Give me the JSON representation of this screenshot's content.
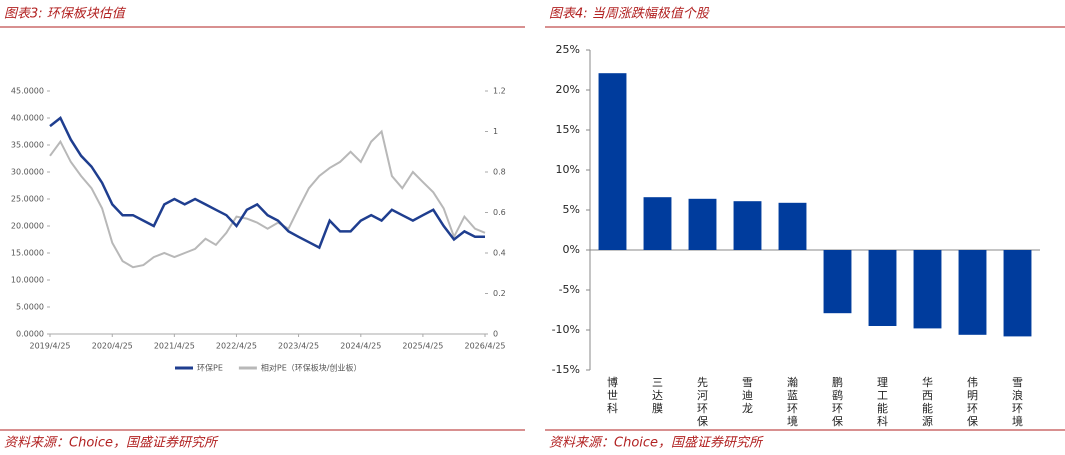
{
  "chart_data": [
    {
      "type": "line",
      "title": "图表3:  环保板块估值",
      "source": "资料来源：Choice，国盛证券研究所",
      "x": [
        "2019/4/25",
        "2019/6/25",
        "2019/8/25",
        "2019/10/25",
        "2019/12/25",
        "2020/2/25",
        "2020/4/25",
        "2020/6/25",
        "2020/8/25",
        "2020/10/25",
        "2020/12/25",
        "2021/2/25",
        "2021/4/25",
        "2021/6/25",
        "2021/8/25",
        "2021/10/25",
        "2021/12/25",
        "2022/2/25",
        "2022/4/25",
        "2022/6/25",
        "2022/8/25",
        "2022/10/25",
        "2022/12/25",
        "2023/2/25",
        "2023/4/25",
        "2023/6/25",
        "2023/8/25",
        "2023/10/25",
        "2023/12/25",
        "2024/2/25",
        "2024/4/25",
        "2024/6/25",
        "2024/8/25",
        "2024/10/25",
        "2024/12/25",
        "2025/2/25",
        "2025/4/25",
        "2025/6/25",
        "2025/8/25",
        "2025/10/25",
        "2025/12/25",
        "2026/2/25",
        "2026/4/25"
      ],
      "xlim": [
        "2019/4/25",
        "2026/4/25"
      ],
      "xticks": [
        "2019/4/25",
        "2020/4/25",
        "2021/4/25",
        "2022/4/25",
        "2023/4/25",
        "2024/4/25",
        "2025/4/25",
        "2026/4/25"
      ],
      "series": [
        {
          "name": "环保PE",
          "color": "#1f3e8f",
          "values": [
            38.5,
            40,
            36,
            33,
            31,
            28,
            24,
            22,
            22,
            21,
            20,
            24,
            25,
            24,
            25,
            24,
            23,
            22,
            20,
            23,
            24,
            22,
            21,
            19,
            18,
            17,
            16,
            21,
            19,
            19,
            21,
            22,
            21,
            23,
            22,
            21,
            22,
            23,
            20,
            17.5,
            19,
            18,
            18
          ]
        },
        {
          "name": "相对PE（环保板块/创业板）",
          "color": "#b8b8b8",
          "axis": "y2",
          "values": [
            0.88,
            0.95,
            0.85,
            0.78,
            0.72,
            0.62,
            0.45,
            0.36,
            0.33,
            0.34,
            0.38,
            0.4,
            0.38,
            0.4,
            0.42,
            0.47,
            0.44,
            0.5,
            0.58,
            0.57,
            0.55,
            0.52,
            0.55,
            0.52,
            0.62,
            0.72,
            0.78,
            0.82,
            0.85,
            0.9,
            0.85,
            0.95,
            1.0,
            0.78,
            0.72,
            0.8,
            0.75,
            0.7,
            0.62,
            0.48,
            0.58,
            0.52,
            0.5
          ]
        }
      ],
      "ylim": [
        0,
        45
      ],
      "yticks": [
        {
          "value": 0,
          "label": "0.0000"
        },
        {
          "value": 5,
          "label": "5.0000"
        },
        {
          "value": 10,
          "label": "10.0000"
        },
        {
          "value": 15,
          "label": "15.0000"
        },
        {
          "value": 20,
          "label": "20.0000"
        },
        {
          "value": 25,
          "label": "25.0000"
        },
        {
          "value": 30,
          "label": "30.0000"
        },
        {
          "value": 35,
          "label": "35.0000"
        },
        {
          "value": 40,
          "label": "40.0000"
        },
        {
          "value": 45,
          "label": "45.0000"
        }
      ],
      "y2lim": [
        0,
        1.2
      ],
      "y2ticks": [
        0,
        0.2,
        0.4,
        0.6,
        0.8,
        1,
        1.2
      ],
      "legend": "bottom"
    },
    {
      "type": "bar",
      "title": "图表4:  当周涨跌幅极值个股",
      "source": "资料来源：Choice，国盛证券研究所",
      "categories": [
        "博世科",
        "三达膜",
        "先河环保",
        "雪迪龙",
        "瀚蓝环境",
        "鹏鹞环保",
        "理工能科",
        "华西能源",
        "伟明环保",
        "雪浪环境"
      ],
      "values": [
        22.1,
        6.6,
        6.4,
        6.1,
        5.9,
        -7.9,
        -9.5,
        -9.8,
        -10.6,
        -10.8
      ],
      "color": "#003c9d",
      "ylim": [
        -15,
        25
      ],
      "yticks": [
        {
          "value": -15,
          "label": "-15%"
        },
        {
          "value": -10,
          "label": "-10%"
        },
        {
          "value": -5,
          "label": "-5%"
        },
        {
          "value": 0,
          "label": "0%"
        },
        {
          "value": 5,
          "label": "5%"
        },
        {
          "value": 10,
          "label": "10%"
        },
        {
          "value": 15,
          "label": "15%"
        },
        {
          "value": 20,
          "label": "20%"
        },
        {
          "value": 25,
          "label": "25%"
        }
      ]
    }
  ]
}
